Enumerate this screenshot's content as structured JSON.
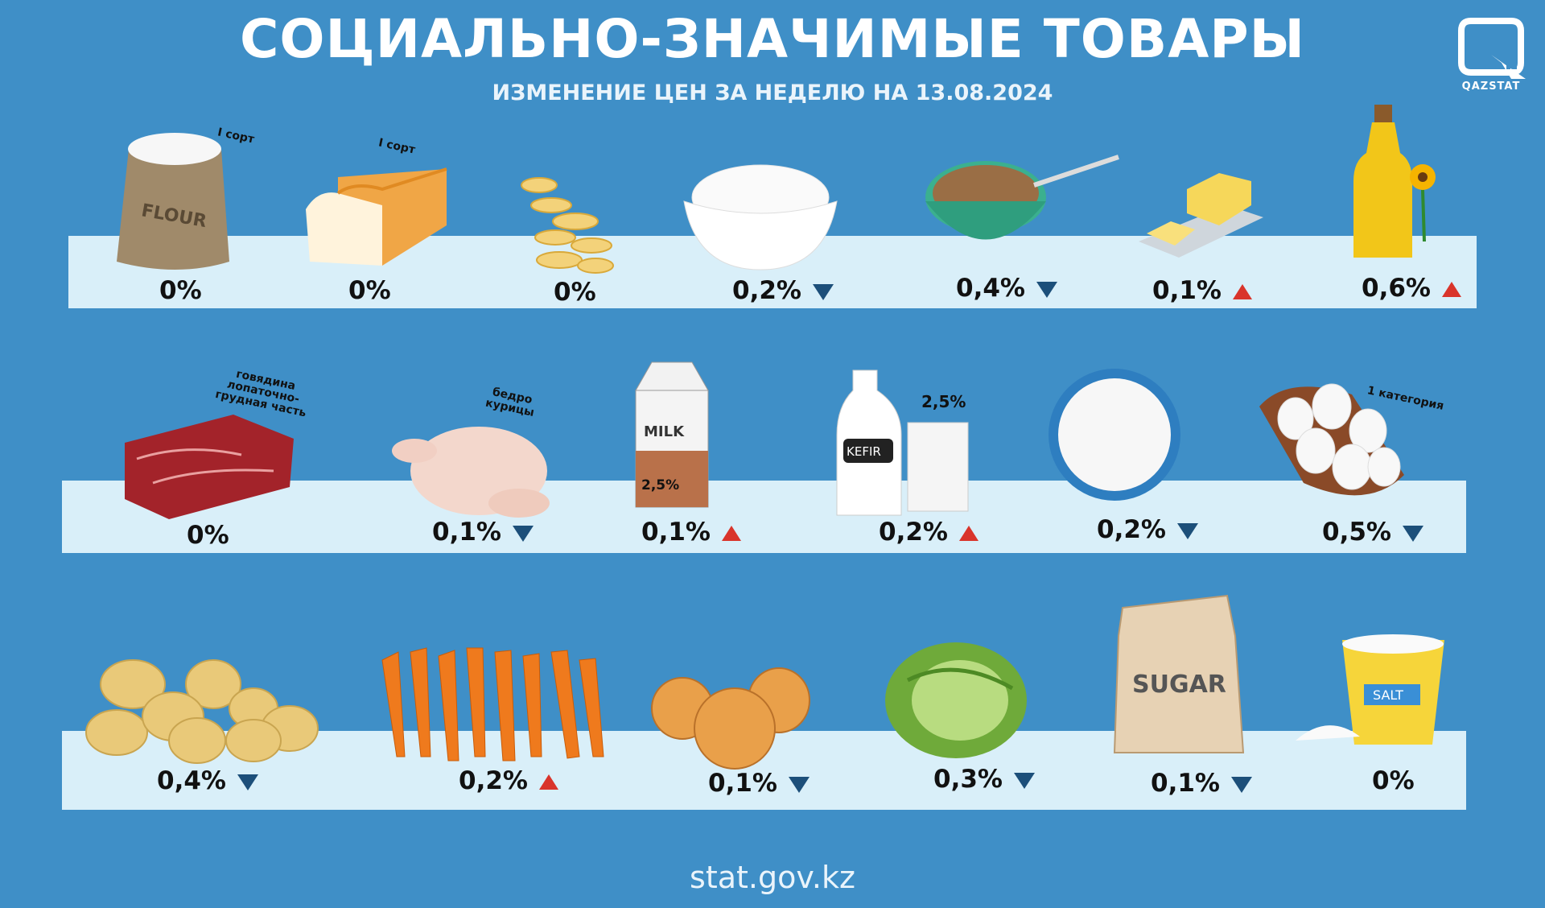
{
  "header": {
    "title": "СОЦИАЛЬНО-ЗНАЧИМЫЕ ТОВАРЫ",
    "subtitle": "ИЗМЕНЕНИЕ ЦЕН ЗА НЕДЕЛЮ НА 13.08.2024",
    "logo_text": "QAZSTAT"
  },
  "colors": {
    "background": "#3f8fc7",
    "band": "#d9eff9",
    "down": "#1c4f7a",
    "up": "#d9342b"
  },
  "rows": [
    {
      "items": [
        {
          "product": "flour",
          "note": "I сорт",
          "change": "0%",
          "direction": "none"
        },
        {
          "product": "bread",
          "note": "I сорт",
          "change": "0%",
          "direction": "none"
        },
        {
          "product": "pasta",
          "note": "",
          "change": "0%",
          "direction": "none"
        },
        {
          "product": "rice",
          "note": "",
          "change": "0,2%",
          "direction": "down"
        },
        {
          "product": "buckwheat",
          "note": "",
          "change": "0,4%",
          "direction": "down"
        },
        {
          "product": "butter",
          "note": "",
          "change": "0,1%",
          "direction": "up"
        },
        {
          "product": "sunflower-oil",
          "note": "",
          "change": "0,6%",
          "direction": "up"
        }
      ]
    },
    {
      "items": [
        {
          "product": "beef",
          "note": "говядина лопаточно-грудная часть",
          "change": "0%",
          "direction": "none"
        },
        {
          "product": "chicken",
          "note": "бедро курицы",
          "change": "0,1%",
          "direction": "down"
        },
        {
          "product": "milk",
          "note": "",
          "label": "MILK",
          "fat": "2,5%",
          "change": "0,1%",
          "direction": "up"
        },
        {
          "product": "kefir",
          "note": "2,5%",
          "label": "KEFIR",
          "change": "0,2%",
          "direction": "up"
        },
        {
          "product": "cottage-cheese",
          "note": "",
          "change": "0,2%",
          "direction": "down"
        },
        {
          "product": "eggs",
          "note": "1 категория",
          "change": "0,5%",
          "direction": "down"
        }
      ]
    },
    {
      "items": [
        {
          "product": "potato",
          "note": "",
          "change": "0,4%",
          "direction": "down"
        },
        {
          "product": "carrot",
          "note": "",
          "change": "0,2%",
          "direction": "up"
        },
        {
          "product": "onion",
          "note": "",
          "change": "0,1%",
          "direction": "down"
        },
        {
          "product": "cabbage",
          "note": "",
          "change": "0,3%",
          "direction": "down"
        },
        {
          "product": "sugar",
          "note": "",
          "label": "SUGAR",
          "change": "0,1%",
          "direction": "down"
        },
        {
          "product": "salt",
          "note": "",
          "label": "SALT",
          "change": "0%",
          "direction": "none"
        }
      ]
    }
  ],
  "flour_label": "FLOUR",
  "footer": {
    "site": "stat.gov.kz"
  }
}
